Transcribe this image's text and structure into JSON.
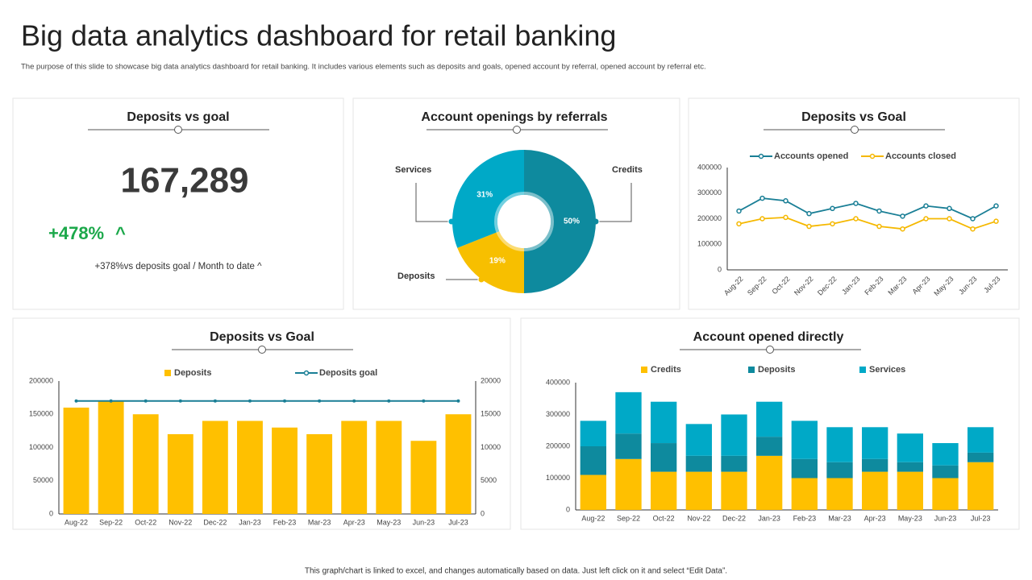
{
  "header": {
    "title": "Big data analytics dashboard for retail banking",
    "subtitle": "The purpose of this slide to showcase big data analytics dashboard for retail banking. It includes various elements such as deposits and goals, opened account by referral, opened account by referral etc."
  },
  "kpi": {
    "title": "Deposits vs goal",
    "value": "167,289",
    "change": "+478%",
    "arrow": "^",
    "note": "+378%vs deposits goal / Month to date ^"
  },
  "chart_data": [
    {
      "type": "pie",
      "title": "Account openings by referrals",
      "donut": true,
      "categories": [
        "Credits",
        "Deposits",
        "Services"
      ],
      "values": [
        50,
        19,
        31
      ],
      "value_labels": [
        "50%",
        "19%",
        "31%"
      ],
      "colors": [
        "#0e8a9e",
        "#f7bf00",
        "#00a9c7"
      ]
    },
    {
      "type": "line",
      "title": "Deposits vs Goal",
      "categories": [
        "Aug-22",
        "Sep-22",
        "Oct-22",
        "Nov-22",
        "Dec-22",
        "Jan-23",
        "Feb-23",
        "Mar-23",
        "Apr-23",
        "May-23",
        "Jun-23",
        "Jul-23"
      ],
      "series": [
        {
          "name": "Accounts opened",
          "color": "#1a7f96",
          "values": [
            230000,
            280000,
            270000,
            220000,
            240000,
            260000,
            230000,
            210000,
            250000,
            240000,
            200000,
            250000
          ]
        },
        {
          "name": "Accounts closed",
          "color": "#f5b800",
          "values": [
            180000,
            200000,
            205000,
            170000,
            180000,
            200000,
            170000,
            160000,
            200000,
            200000,
            160000,
            190000
          ]
        }
      ],
      "ylim": [
        0,
        400000
      ],
      "yticks": [
        0,
        100000,
        200000,
        300000,
        400000
      ]
    },
    {
      "type": "bar",
      "title": "Deposits vs Goal",
      "categories": [
        "Aug-22",
        "Sep-22",
        "Oct-22",
        "Nov-22",
        "Dec-22",
        "Jan-23",
        "Feb-23",
        "Mar-23",
        "Apr-23",
        "May-23",
        "Jun-23",
        "Jul-23"
      ],
      "series": [
        {
          "name": "Deposits",
          "color": "#ffc000",
          "values": [
            160000,
            170000,
            150000,
            120000,
            140000,
            140000,
            130000,
            120000,
            140000,
            140000,
            110000,
            150000
          ]
        },
        {
          "name": "Deposits goal",
          "color": "#1a7f96",
          "type": "line",
          "axis": "y2",
          "values": [
            17000,
            17000,
            17000,
            17000,
            17000,
            17000,
            17000,
            17000,
            17000,
            17000,
            17000,
            17000
          ]
        }
      ],
      "ylim": [
        0,
        200000
      ],
      "yticks": [
        0,
        50000,
        100000,
        150000,
        200000
      ],
      "y2lim": [
        0,
        20000
      ],
      "y2ticks": [
        0,
        5000,
        10000,
        15000,
        20000
      ]
    },
    {
      "type": "bar",
      "stacked": true,
      "title": "Account opened directly",
      "categories": [
        "Aug-22",
        "Sep-22",
        "Oct-22",
        "Nov-22",
        "Dec-22",
        "Jan-23",
        "Feb-23",
        "Mar-23",
        "Apr-23",
        "May-23",
        "Jun-23",
        "Jul-23"
      ],
      "series": [
        {
          "name": "Credits",
          "color": "#ffc000",
          "values": [
            110000,
            160000,
            120000,
            120000,
            120000,
            170000,
            100000,
            100000,
            120000,
            120000,
            100000,
            150000
          ]
        },
        {
          "name": "Deposits",
          "color": "#0e8a9e",
          "values": [
            90000,
            80000,
            90000,
            50000,
            50000,
            60000,
            60000,
            50000,
            40000,
            30000,
            40000,
            30000
          ]
        },
        {
          "name": "Services",
          "color": "#00a9c7",
          "values": [
            80000,
            130000,
            130000,
            100000,
            130000,
            110000,
            120000,
            110000,
            100000,
            90000,
            70000,
            80000
          ]
        }
      ],
      "ylim": [
        0,
        400000
      ],
      "yticks": [
        0,
        100000,
        200000,
        300000,
        400000
      ]
    }
  ],
  "footer": "This graph/chart is linked to excel, and changes automatically based on data. Just left click on it and select “Edit Data”."
}
